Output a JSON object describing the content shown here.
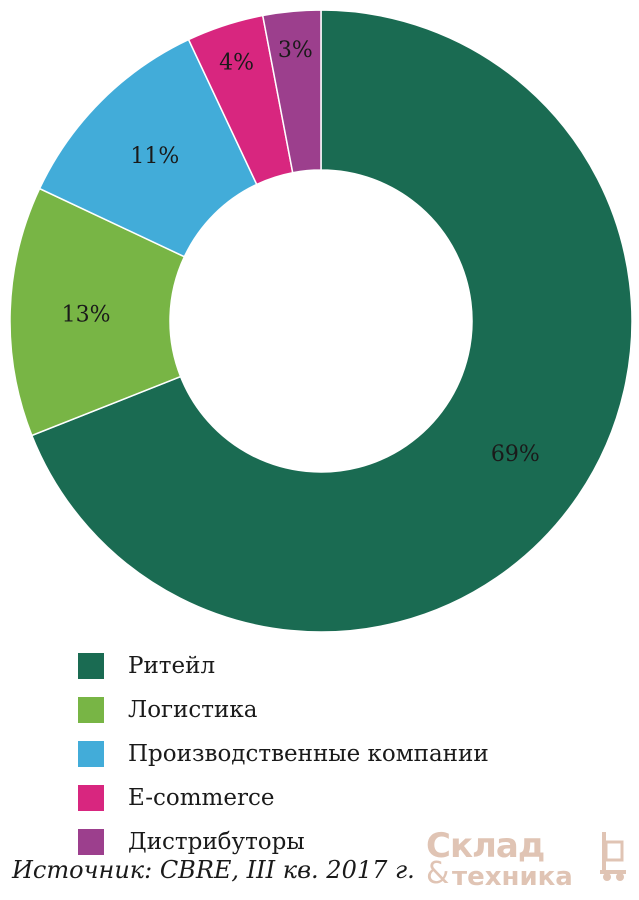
{
  "chart_data": {
    "type": "donut",
    "values": [
      69,
      13,
      11,
      4,
      3
    ],
    "value_labels": [
      "69%",
      "13%",
      "11%",
      "4%",
      "3%"
    ],
    "categories": [
      "Ритейл",
      "Логистика",
      "Производственные компании",
      "E-commerce",
      "Дистрибуторы"
    ],
    "colors": [
      "#1a6b52",
      "#78b545",
      "#42acd9",
      "#d8267f",
      "#9c3f8d"
    ],
    "legend_position": "bottom-left",
    "start": "12 o'clock",
    "direction": "clockwise"
  },
  "source": "Источник: CBRE, III кв. 2017 г.",
  "watermark": {
    "line1": "Склад",
    "amp": "&",
    "line2": "техника"
  }
}
